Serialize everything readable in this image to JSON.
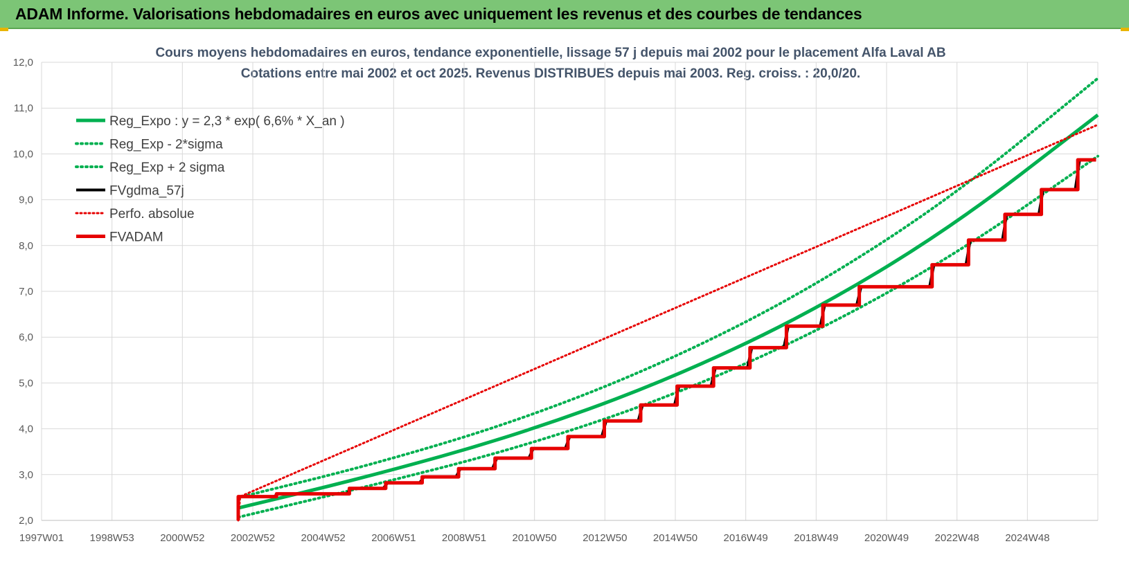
{
  "header": {
    "title": "ADAM Informe. Valorisations hebdomadaires en euros avec uniquement les revenus et des courbes de tendances"
  },
  "colors": {
    "header_bg": "#7cc576",
    "green": "#00b050",
    "black": "#000000",
    "red": "#e60000",
    "grid": "#d9d9d9"
  },
  "chart_data": {
    "type": "line",
    "title": "Cours moyens hebdomadaires en euros, tendance exponentielle, lissage 57 j depuis mai 2002 pour le placement Alfa Laval AB",
    "subtitle": "Cotations entre mai 2002 et oct 2025. Revenus DISTRIBUES depuis mai 2003. Reg. croiss. : 20,0/20.",
    "x_tick_labels": [
      "1997W01",
      "1998W53",
      "2000W52",
      "2002W52",
      "2004W52",
      "2006W51",
      "2008W51",
      "2010W50",
      "2012W50",
      "2014W50",
      "2016W49",
      "2018W49",
      "2020W49",
      "2022W48",
      "2024W48"
    ],
    "x_range": [
      1997.0,
      2026.0
    ],
    "y_tick_labels": [
      "2,0",
      "3,0",
      "4,0",
      "5,0",
      "6,0",
      "7,0",
      "8,0",
      "9,0",
      "10,0",
      "11,0",
      "12,0"
    ],
    "ylim": [
      2,
      12
    ],
    "grid": true,
    "legend_position": "top-left",
    "series": [
      {
        "name": "Reg_Expo : y = 2,3 * exp( 6,6% *  X_an )",
        "style": "solid-green",
        "color": "#00b050",
        "x": [
          2002.4,
          2006,
          2010,
          2014,
          2018,
          2022,
          2026
        ],
        "y": [
          2.27,
          2.96,
          3.85,
          5.0,
          6.48,
          8.4,
          10.85
        ]
      },
      {
        "name": "Reg_Exp - 2*sigma",
        "style": "dotted-green",
        "color": "#00b050",
        "x": [
          2002.4,
          2006,
          2010,
          2014,
          2018,
          2022,
          2026
        ],
        "y": [
          2.07,
          2.75,
          3.56,
          4.62,
          6.0,
          7.75,
          9.95
        ]
      },
      {
        "name": "Reg_Exp + 2 sigma",
        "style": "dotted-green",
        "color": "#00b050",
        "x": [
          2002.4,
          2006,
          2010,
          2014,
          2018,
          2022,
          2026
        ],
        "y": [
          2.5,
          3.2,
          4.15,
          5.4,
          7.0,
          9.05,
          11.65
        ]
      },
      {
        "name": "FVgdma_57j",
        "style": "solid-black",
        "color": "#000000",
        "x": [
          2002.4,
          2003.38,
          2003.5,
          2005.38,
          2005.5,
          2006.38,
          2006.5,
          2007.38,
          2007.5,
          2008.38,
          2008.5,
          2009.38,
          2009.5,
          2010.38,
          2010.5,
          2011.38,
          2011.5,
          2012.38,
          2012.5,
          2013.38,
          2013.5,
          2014.38,
          2014.5,
          2015.38,
          2015.5,
          2016.38,
          2016.5,
          2017.38,
          2017.5,
          2018.38,
          2018.5,
          2019.38,
          2019.5,
          2021.38,
          2021.5,
          2022.38,
          2022.5,
          2023.38,
          2023.5,
          2024.38,
          2024.5,
          2025.38,
          2025.5,
          2025.95
        ],
        "y": [
          2.52,
          2.52,
          2.58,
          2.58,
          2.7,
          2.7,
          2.82,
          2.82,
          2.95,
          2.95,
          3.13,
          3.13,
          3.36,
          3.36,
          3.57,
          3.57,
          3.83,
          3.83,
          4.17,
          4.17,
          4.52,
          4.52,
          4.93,
          4.93,
          5.33,
          5.33,
          5.77,
          5.77,
          6.24,
          6.24,
          6.7,
          6.7,
          7.1,
          7.1,
          7.58,
          7.58,
          8.12,
          8.12,
          8.68,
          8.68,
          9.22,
          9.22,
          9.87,
          9.87
        ]
      },
      {
        "name": "Perfo. absolue",
        "style": "dotted-red",
        "color": "#e60000",
        "x": [
          2002.4,
          2002.45,
          2025.95
        ],
        "y": [
          2.0,
          2.52,
          10.62
        ]
      },
      {
        "name": "FVADAM",
        "style": "solid-red",
        "color": "#e60000",
        "x": [
          2002.4,
          2002.4,
          2003.45,
          2003.45,
          2005.45,
          2005.45,
          2006.45,
          2006.45,
          2007.45,
          2007.45,
          2008.45,
          2008.45,
          2009.45,
          2009.45,
          2010.45,
          2010.45,
          2011.45,
          2011.45,
          2012.45,
          2012.45,
          2013.45,
          2013.45,
          2014.45,
          2014.45,
          2015.45,
          2015.45,
          2016.45,
          2016.45,
          2017.45,
          2017.45,
          2018.45,
          2018.45,
          2019.45,
          2019.45,
          2021.45,
          2021.45,
          2022.45,
          2022.45,
          2023.45,
          2023.45,
          2024.45,
          2024.45,
          2025.45,
          2025.45,
          2025.95
        ],
        "y": [
          2.0,
          2.52,
          2.52,
          2.58,
          2.58,
          2.7,
          2.7,
          2.82,
          2.82,
          2.95,
          2.95,
          3.13,
          3.13,
          3.36,
          3.36,
          3.57,
          3.57,
          3.83,
          3.83,
          4.17,
          4.17,
          4.52,
          4.52,
          4.93,
          4.93,
          5.33,
          5.33,
          5.77,
          5.77,
          6.24,
          6.24,
          6.7,
          6.7,
          7.1,
          7.1,
          7.58,
          7.58,
          8.12,
          8.12,
          8.68,
          8.68,
          9.22,
          9.22,
          9.87,
          9.87
        ]
      }
    ]
  }
}
